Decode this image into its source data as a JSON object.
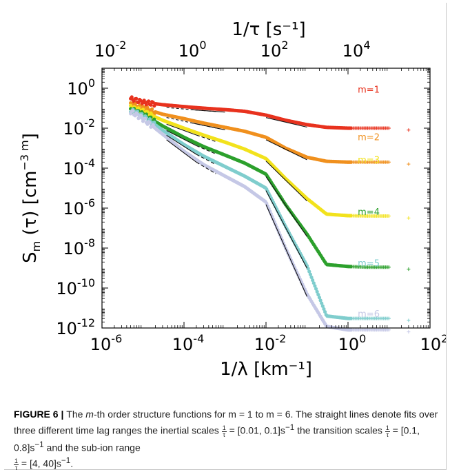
{
  "chart_data": {
    "type": "line",
    "x_scale": "log",
    "y_scale": "log",
    "xlim": [
      1e-06,
      100
    ],
    "ylim": [
      1e-12,
      10
    ],
    "xlabel": "1/λ [km⁻¹]",
    "ylabel": "S",
    "ylabel_sub": "m",
    "ylabel_after": " (τ) [cm",
    "ylabel_sup": "−3 m",
    "ylabel_end": "]",
    "top_xlabel": "1/τ [s⁻¹]",
    "x_ticks": [
      {
        "value": 1e-06,
        "base": "10",
        "exp": "-6"
      },
      {
        "value": 0.0001,
        "base": "10",
        "exp": "-4"
      },
      {
        "value": 0.01,
        "base": "10",
        "exp": "-2"
      },
      {
        "value": 1,
        "base": "10",
        "exp": "0"
      },
      {
        "value": 100,
        "base": "10",
        "exp": "2"
      }
    ],
    "y_ticks": [
      {
        "value": 1,
        "base": "10",
        "exp": "0"
      },
      {
        "value": 0.01,
        "base": "10",
        "exp": "-2"
      },
      {
        "value": 0.0001,
        "base": "10",
        "exp": "-4"
      },
      {
        "value": 1e-06,
        "base": "10",
        "exp": "-6"
      },
      {
        "value": 1e-08,
        "base": "10",
        "exp": "-8"
      },
      {
        "value": 1e-10,
        "base": "10",
        "exp": "-10"
      },
      {
        "value": 1e-12,
        "base": "10",
        "exp": "-12"
      }
    ],
    "top_ticks": [
      {
        "x_value": 1.6e-06,
        "base": "10",
        "exp": "-2"
      },
      {
        "x_value": 0.00016,
        "base": "10",
        "exp": "0"
      },
      {
        "x_value": 0.016,
        "base": "10",
        "exp": "2"
      },
      {
        "x_value": 1.6,
        "base": "10",
        "exp": "4"
      }
    ],
    "series": [
      {
        "name": "m=1",
        "color": "#e8321e",
        "label_x": 3.2,
        "label_y": 0.6,
        "x": [
          5e-06,
          1e-05,
          3e-05,
          0.0001,
          0.0003,
          0.001,
          0.003,
          0.01,
          0.03,
          0.1,
          0.3,
          1,
          3,
          10
        ],
        "y": [
          0.3,
          0.2,
          0.15,
          0.12,
          0.1,
          0.085,
          0.07,
          0.045,
          0.025,
          0.015,
          0.011,
          0.01,
          0.01,
          0.01
        ]
      },
      {
        "name": "m=2",
        "color": "#f0901e",
        "label_x": 3.2,
        "label_y": 0.0025,
        "x": [
          5e-06,
          1e-05,
          3e-05,
          0.0001,
          0.0003,
          0.001,
          0.003,
          0.01,
          0.03,
          0.1,
          0.3,
          1,
          3,
          10
        ],
        "y": [
          0.15,
          0.1,
          0.05,
          0.03,
          0.018,
          0.011,
          0.007,
          0.0035,
          0.001,
          0.00035,
          0.00022,
          0.0002,
          0.0002,
          0.0002
        ]
      },
      {
        "name": "m=3",
        "color": "#f2e21c",
        "label_x": 3.2,
        "label_y": 0.00018,
        "x": [
          5e-06,
          1e-05,
          3e-05,
          0.0001,
          0.0003,
          0.001,
          0.003,
          0.01,
          0.03,
          0.1,
          0.3,
          1,
          3,
          10
        ],
        "y": [
          0.11,
          0.07,
          0.025,
          0.01,
          0.0045,
          0.002,
          0.0009,
          0.0003,
          3e-05,
          3e-06,
          5e-07,
          4.2e-07,
          4e-07,
          4e-07
        ]
      },
      {
        "name": "m=4",
        "color": "#2ca02c",
        "label_x": 3.2,
        "label_y": 4.5e-07,
        "x": [
          5e-06,
          1e-05,
          3e-05,
          0.0001,
          0.0003,
          0.001,
          0.003,
          0.01,
          0.03,
          0.1,
          0.3,
          1,
          3,
          10
        ],
        "y": [
          0.09,
          0.05,
          0.013,
          0.0035,
          0.0012,
          0.00045,
          0.00018,
          5e-05,
          1.5e-06,
          5e-08,
          1.5e-09,
          1.2e-09,
          1.1e-09,
          1.1e-09
        ]
      },
      {
        "name": "m=5",
        "color": "#7fcdcd",
        "label_x": 3.2,
        "label_y": 1.2e-09,
        "x": [
          5e-06,
          1e-05,
          3e-05,
          0.0001,
          0.0003,
          0.001,
          0.003,
          0.01,
          0.03,
          0.1,
          0.3,
          1,
          3,
          10
        ],
        "y": [
          0.08,
          0.04,
          0.008,
          0.0015,
          0.0004,
          0.00012,
          4e-05,
          1e-05,
          1.2e-07,
          1.3e-09,
          4e-12,
          3e-12,
          3e-12,
          3e-12
        ]
      },
      {
        "name": "m=6",
        "color": "#c5c8e6",
        "label_x": 3.2,
        "label_y": 3.5e-12,
        "x": [
          5e-06,
          1e-05,
          3e-05,
          0.0001,
          0.0003,
          0.001,
          0.003,
          0.01,
          0.03,
          0.1,
          0.3,
          1,
          3,
          10
        ],
        "y": [
          0.07,
          0.03,
          0.005,
          0.0007,
          0.00015,
          4e-05,
          1.2e-05,
          2e-06,
          1e-08,
          5e-11,
          1.2e-12,
          8e-13,
          8e-13,
          8e-13
        ]
      }
    ]
  },
  "caption": {
    "label": "FIGURE 6",
    "separator": " | ",
    "part1": "The ",
    "italic_m": "m",
    "part2": "-th order structure functions for m = 1 to m = 6. The straight lines denote fits over three different time lag ranges the inertial scales ",
    "frac_num": "1",
    "frac_den": "τ",
    "range1": "= [0.01, 0.1]s",
    "sup": "−1",
    "part3": " the transition scales ",
    "range2": "= [0.1, 0.8]s",
    "part4": " and the sub-ion range ",
    "range3": "= [4, 40]s",
    "end": "."
  }
}
